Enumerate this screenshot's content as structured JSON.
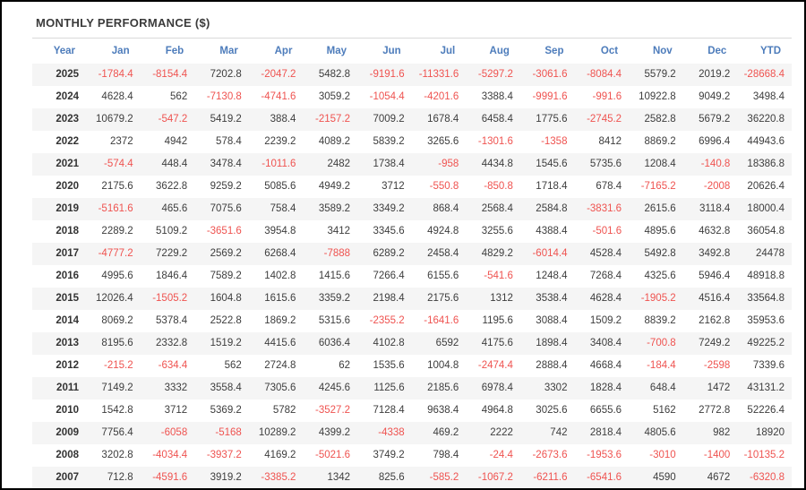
{
  "title": "MONTHLY PERFORMANCE ($)",
  "colors": {
    "header_text": "#4d7cbb",
    "negative": "#ef5350",
    "positive": "#3d3d3d",
    "stripe": "#f5f5f5",
    "window_border": "#000000"
  },
  "table": {
    "columns": [
      "Year",
      "Jan",
      "Feb",
      "Mar",
      "Apr",
      "May",
      "Jun",
      "Jul",
      "Aug",
      "Sep",
      "Oct",
      "Nov",
      "Dec",
      "YTD"
    ],
    "rows": [
      {
        "year": "2025",
        "values": [
          "-1784.4",
          "-8154.4",
          "7202.8",
          "-2047.2",
          "5482.8",
          "-9191.6",
          "-11331.6",
          "-5297.2",
          "-3061.6",
          "-8084.4",
          "5579.2",
          "2019.2",
          "-28668.4"
        ]
      },
      {
        "year": "2024",
        "values": [
          "4628.4",
          "562",
          "-7130.8",
          "-4741.6",
          "3059.2",
          "-1054.4",
          "-4201.6",
          "3388.4",
          "-9991.6",
          "-991.6",
          "10922.8",
          "9049.2",
          "3498.4"
        ]
      },
      {
        "year": "2023",
        "values": [
          "10679.2",
          "-547.2",
          "5419.2",
          "388.4",
          "-2157.2",
          "7009.2",
          "1678.4",
          "6458.4",
          "1775.6",
          "-2745.2",
          "2582.8",
          "5679.2",
          "36220.8"
        ]
      },
      {
        "year": "2022",
        "values": [
          "2372",
          "4942",
          "578.4",
          "2239.2",
          "4089.2",
          "5839.2",
          "3265.6",
          "-1301.6",
          "-1358",
          "8412",
          "8869.2",
          "6996.4",
          "44943.6"
        ]
      },
      {
        "year": "2021",
        "values": [
          "-574.4",
          "448.4",
          "3478.4",
          "-1011.6",
          "2482",
          "1738.4",
          "-958",
          "4434.8",
          "1545.6",
          "5735.6",
          "1208.4",
          "-140.8",
          "18386.8"
        ]
      },
      {
        "year": "2020",
        "values": [
          "2175.6",
          "3622.8",
          "9259.2",
          "5085.6",
          "4949.2",
          "3712",
          "-550.8",
          "-850.8",
          "1718.4",
          "678.4",
          "-7165.2",
          "-2008",
          "20626.4"
        ]
      },
      {
        "year": "2019",
        "values": [
          "-5161.6",
          "465.6",
          "7075.6",
          "758.4",
          "3589.2",
          "3349.2",
          "868.4",
          "2568.4",
          "2584.8",
          "-3831.6",
          "2615.6",
          "3118.4",
          "18000.4"
        ]
      },
      {
        "year": "2018",
        "values": [
          "2289.2",
          "5109.2",
          "-3651.6",
          "3954.8",
          "3412",
          "3345.6",
          "4924.8",
          "3255.6",
          "4388.4",
          "-501.6",
          "4895.6",
          "4632.8",
          "36054.8"
        ]
      },
      {
        "year": "2017",
        "values": [
          "-4777.2",
          "7229.2",
          "2569.2",
          "6268.4",
          "-7888",
          "6289.2",
          "2458.4",
          "4829.2",
          "-6014.4",
          "4528.4",
          "5492.8",
          "3492.8",
          "24478"
        ]
      },
      {
        "year": "2016",
        "values": [
          "4995.6",
          "1846.4",
          "7589.2",
          "1402.8",
          "1415.6",
          "7266.4",
          "6155.6",
          "-541.6",
          "1248.4",
          "7268.4",
          "4325.6",
          "5946.4",
          "48918.8"
        ]
      },
      {
        "year": "2015",
        "values": [
          "12026.4",
          "-1505.2",
          "1604.8",
          "1615.6",
          "3359.2",
          "2198.4",
          "2175.6",
          "1312",
          "3538.4",
          "4628.4",
          "-1905.2",
          "4516.4",
          "33564.8"
        ]
      },
      {
        "year": "2014",
        "values": [
          "8069.2",
          "5378.4",
          "2522.8",
          "1869.2",
          "5315.6",
          "-2355.2",
          "-1641.6",
          "1195.6",
          "3088.4",
          "1509.2",
          "8839.2",
          "2162.8",
          "35953.6"
        ]
      },
      {
        "year": "2013",
        "values": [
          "8195.6",
          "2332.8",
          "1519.2",
          "4415.6",
          "6036.4",
          "4102.8",
          "6592",
          "4175.6",
          "1898.4",
          "3408.4",
          "-700.8",
          "7249.2",
          "49225.2"
        ]
      },
      {
        "year": "2012",
        "values": [
          "-215.2",
          "-634.4",
          "562",
          "2724.8",
          "62",
          "1535.6",
          "1004.8",
          "-2474.4",
          "2888.4",
          "4668.4",
          "-184.4",
          "-2598",
          "7339.6"
        ]
      },
      {
        "year": "2011",
        "values": [
          "7149.2",
          "3332",
          "3558.4",
          "7305.6",
          "4245.6",
          "1125.6",
          "2185.6",
          "6978.4",
          "3302",
          "1828.4",
          "648.4",
          "1472",
          "43131.2"
        ]
      },
      {
        "year": "2010",
        "values": [
          "1542.8",
          "3712",
          "5369.2",
          "5782",
          "-3527.2",
          "7128.4",
          "9638.4",
          "4964.8",
          "3025.6",
          "6655.6",
          "5162",
          "2772.8",
          "52226.4"
        ]
      },
      {
        "year": "2009",
        "values": [
          "7756.4",
          "-6058",
          "-5168",
          "10289.2",
          "4399.2",
          "-4338",
          "469.2",
          "2222",
          "742",
          "2818.4",
          "4805.6",
          "982",
          "18920"
        ]
      },
      {
        "year": "2008",
        "values": [
          "3202.8",
          "-4034.4",
          "-3937.2",
          "4169.2",
          "-5021.6",
          "3749.2",
          "798.4",
          "-24.4",
          "-2673.6",
          "-1953.6",
          "-3010",
          "-1400",
          "-10135.2"
        ]
      },
      {
        "year": "2007",
        "values": [
          "712.8",
          "-4591.6",
          "3919.2",
          "-3385.2",
          "1342",
          "825.6",
          "-585.2",
          "-1067.2",
          "-6211.6",
          "-6541.6",
          "4590",
          "4672",
          "-6320.8"
        ]
      }
    ]
  }
}
